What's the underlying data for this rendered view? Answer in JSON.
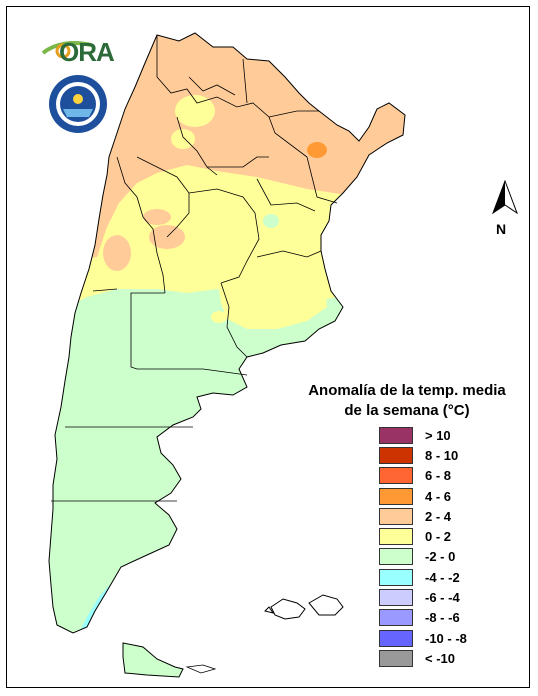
{
  "logo": {
    "ora_text": "ORA",
    "smn_ring_text": "SERVICIO METEOROLOGICO NACIONAL · ARGENTINA"
  },
  "north_arrow": {
    "label": "N"
  },
  "legend": {
    "title_line1": "Anomalía de la temp. media",
    "title_line2": "de la semana (°C)",
    "items": [
      {
        "label": "> 10",
        "color": "#993366"
      },
      {
        "label": "8 - 10",
        "color": "#cc3300"
      },
      {
        "label": "6 - 8",
        "color": "#ff6633"
      },
      {
        "label": "4 - 6",
        "color": "#ff9933"
      },
      {
        "label": "2 - 4",
        "color": "#ffcc99"
      },
      {
        "label": "0 - 2",
        "color": "#ffff99"
      },
      {
        "label": "-2 - 0",
        "color": "#ccffcc"
      },
      {
        "label": "-4 - -2",
        "color": "#99ffff"
      },
      {
        "label": "-6 - -4",
        "color": "#ccccff"
      },
      {
        "label": "-8 - -6",
        "color": "#9999ff"
      },
      {
        "label": "-10 - -8",
        "color": "#6666ff"
      },
      {
        "label": "< -10",
        "color": "#999999"
      }
    ]
  },
  "map": {
    "country": "Argentina",
    "anomaly_zones": [
      {
        "zone": "northwest-northeast",
        "class": "2 - 4"
      },
      {
        "zone": "central-north",
        "class": "0 - 2"
      },
      {
        "zone": "central-south-patagonia",
        "class": "-2 - 0"
      },
      {
        "zone": "south-patagonia-coast",
        "class": "-4 - -2"
      },
      {
        "zone": "misiones-border",
        "class": "4 - 6"
      }
    ]
  }
}
